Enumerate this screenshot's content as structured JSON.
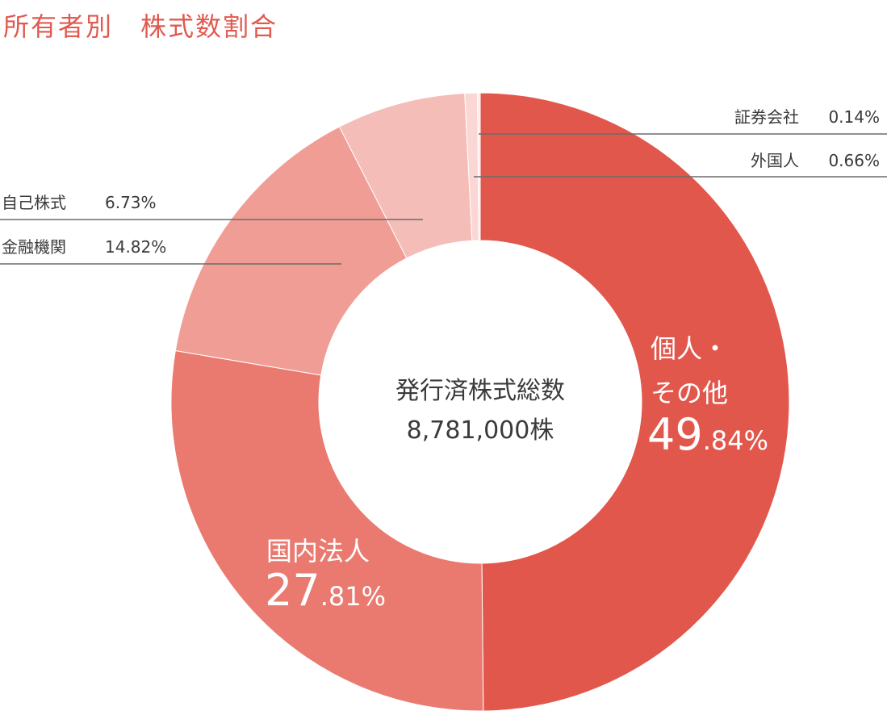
{
  "title": "所有者別　株式数割合",
  "center": {
    "line1": "発行済株式総数",
    "line2": "8,781,000株"
  },
  "colors": {
    "title": "#e05a4f",
    "leader": "#6b6b6b",
    "slices": [
      "#e2574c",
      "#ea7a70",
      "#f09d95",
      "#f5bdb8",
      "#fad7d4",
      "#ffeae8"
    ]
  },
  "chart_data": {
    "type": "pie",
    "donut": true,
    "title": "所有者別　株式数割合",
    "slices": [
      {
        "label": "個人・その他",
        "label_line1": "個人・",
        "label_line2": "その他",
        "value": 49.84,
        "pct_int": "49",
        "pct_dec": ".84%"
      },
      {
        "label": "国内法人",
        "value": 27.81,
        "pct_int": "27",
        "pct_dec": ".81%"
      },
      {
        "label": "金融機関",
        "value": 14.82,
        "value_text": "14.82%"
      },
      {
        "label": "自己株式",
        "value": 6.73,
        "value_text": "6.73%"
      },
      {
        "label": "外国人",
        "value": 0.66,
        "value_text": "0.66%"
      },
      {
        "label": "証券会社",
        "value": 0.14,
        "value_text": "0.14%"
      }
    ],
    "center_text": [
      "発行済株式総数",
      "8,781,000株"
    ]
  }
}
